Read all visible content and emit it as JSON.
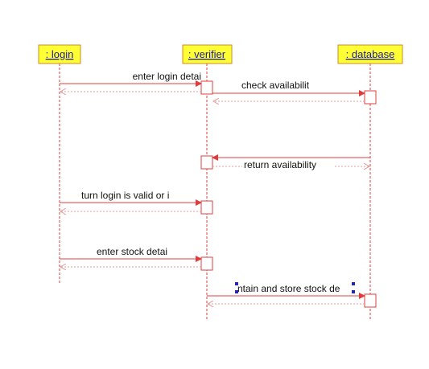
{
  "lifelines": [
    {
      "id": "login",
      "label": ": login"
    },
    {
      "id": "verifier",
      "label": ": verifier"
    },
    {
      "id": "database",
      "label": ": database"
    }
  ],
  "messages": [
    {
      "from": "login",
      "to": "verifier",
      "label": "enter login detai",
      "return": false
    },
    {
      "from": "verifier",
      "to": "login",
      "label": "",
      "return": true
    },
    {
      "from": "verifier",
      "to": "database",
      "label": "check availabilit",
      "return": false
    },
    {
      "from": "database",
      "to": "verifier",
      "label": "",
      "return": true
    },
    {
      "from": "database",
      "to": "verifier",
      "label": "",
      "return": false
    },
    {
      "from": "verifier",
      "to": "database",
      "label": "return availability",
      "return": true
    },
    {
      "from": "login",
      "to": "verifier",
      "label": "turn login is valid or i",
      "return": false
    },
    {
      "from": "verifier",
      "to": "login",
      "label": "",
      "return": true
    },
    {
      "from": "login",
      "to": "verifier",
      "label": "enter stock detai",
      "return": false
    },
    {
      "from": "verifier",
      "to": "login",
      "label": "",
      "return": true
    },
    {
      "from": "verifier",
      "to": "database",
      "label": "ntain and store stock de",
      "return": false
    },
    {
      "from": "database",
      "to": "verifier",
      "label": "",
      "return": true
    }
  ],
  "colors": {
    "header_fill": "#ffff33",
    "header_border": "#d08a2a",
    "header_text": "#1a1aa6",
    "line": "#e03c3c",
    "return_line": "#e79a9a",
    "activation_border": "#e03c3c",
    "label_text": "#111111",
    "selection_handle": "#2222cc"
  }
}
